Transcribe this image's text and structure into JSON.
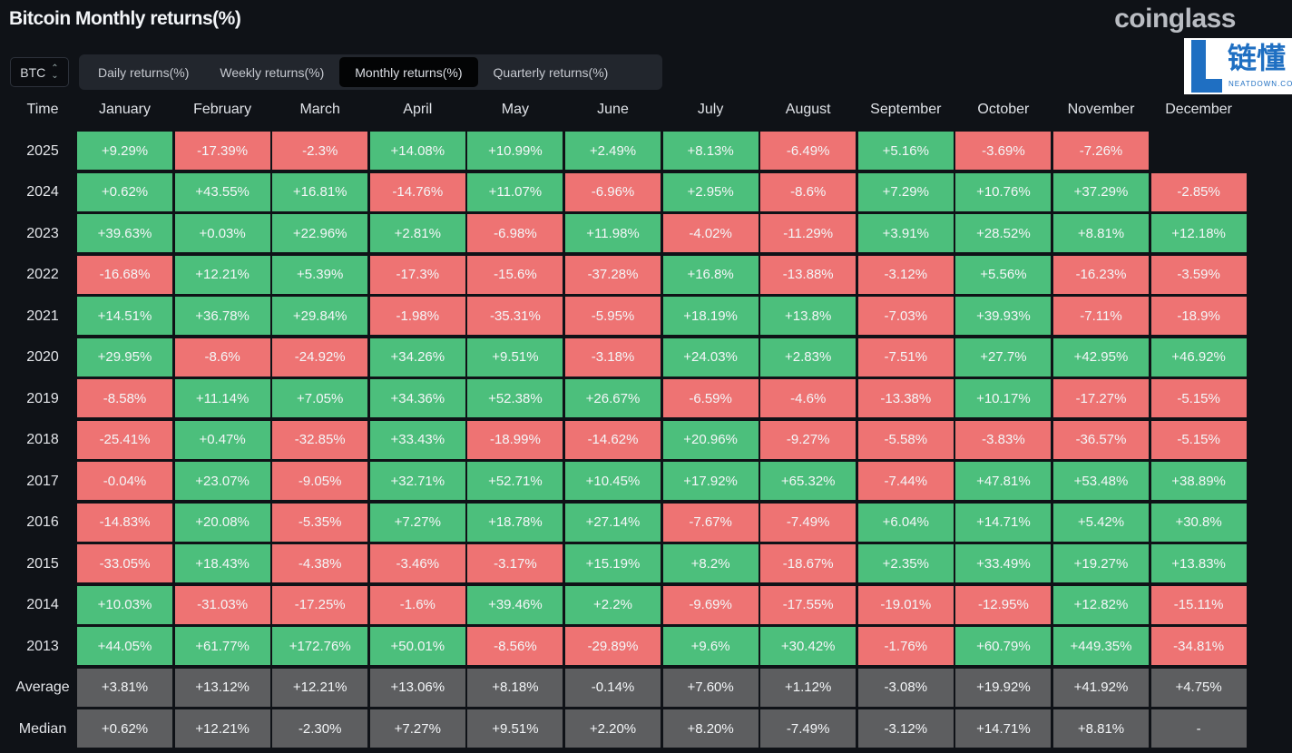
{
  "title": "Bitcoin Monthly returns(%)",
  "brand": "coinglass",
  "symbol": "BTC",
  "tabs": [
    "Daily returns(%)",
    "Weekly returns(%)",
    "Monthly returns(%)",
    "Quarterly returns(%)"
  ],
  "active_tab": 2,
  "columns": [
    "Time",
    "January",
    "February",
    "March",
    "April",
    "May",
    "June",
    "July",
    "August",
    "September",
    "October",
    "November",
    "December"
  ],
  "rows": [
    {
      "label": "2025",
      "values": [
        "+9.29%",
        "-17.39%",
        "-2.3%",
        "+14.08%",
        "+10.99%",
        "+2.49%",
        "+8.13%",
        "-6.49%",
        "+5.16%",
        "-3.69%",
        "-7.26%",
        ""
      ]
    },
    {
      "label": "2024",
      "values": [
        "+0.62%",
        "+43.55%",
        "+16.81%",
        "-14.76%",
        "+11.07%",
        "-6.96%",
        "+2.95%",
        "-8.6%",
        "+7.29%",
        "+10.76%",
        "+37.29%",
        "-2.85%"
      ]
    },
    {
      "label": "2023",
      "values": [
        "+39.63%",
        "+0.03%",
        "+22.96%",
        "+2.81%",
        "-6.98%",
        "+11.98%",
        "-4.02%",
        "-11.29%",
        "+3.91%",
        "+28.52%",
        "+8.81%",
        "+12.18%"
      ]
    },
    {
      "label": "2022",
      "values": [
        "-16.68%",
        "+12.21%",
        "+5.39%",
        "-17.3%",
        "-15.6%",
        "-37.28%",
        "+16.8%",
        "-13.88%",
        "-3.12%",
        "+5.56%",
        "-16.23%",
        "-3.59%"
      ]
    },
    {
      "label": "2021",
      "values": [
        "+14.51%",
        "+36.78%",
        "+29.84%",
        "-1.98%",
        "-35.31%",
        "-5.95%",
        "+18.19%",
        "+13.8%",
        "-7.03%",
        "+39.93%",
        "-7.11%",
        "-18.9%"
      ]
    },
    {
      "label": "2020",
      "values": [
        "+29.95%",
        "-8.6%",
        "-24.92%",
        "+34.26%",
        "+9.51%",
        "-3.18%",
        "+24.03%",
        "+2.83%",
        "-7.51%",
        "+27.7%",
        "+42.95%",
        "+46.92%"
      ]
    },
    {
      "label": "2019",
      "values": [
        "-8.58%",
        "+11.14%",
        "+7.05%",
        "+34.36%",
        "+52.38%",
        "+26.67%",
        "-6.59%",
        "-4.6%",
        "-13.38%",
        "+10.17%",
        "-17.27%",
        "-5.15%"
      ]
    },
    {
      "label": "2018",
      "values": [
        "-25.41%",
        "+0.47%",
        "-32.85%",
        "+33.43%",
        "-18.99%",
        "-14.62%",
        "+20.96%",
        "-9.27%",
        "-5.58%",
        "-3.83%",
        "-36.57%",
        "-5.15%"
      ]
    },
    {
      "label": "2017",
      "values": [
        "-0.04%",
        "+23.07%",
        "-9.05%",
        "+32.71%",
        "+52.71%",
        "+10.45%",
        "+17.92%",
        "+65.32%",
        "-7.44%",
        "+47.81%",
        "+53.48%",
        "+38.89%"
      ]
    },
    {
      "label": "2016",
      "values": [
        "-14.83%",
        "+20.08%",
        "-5.35%",
        "+7.27%",
        "+18.78%",
        "+27.14%",
        "-7.67%",
        "-7.49%",
        "+6.04%",
        "+14.71%",
        "+5.42%",
        "+30.8%"
      ]
    },
    {
      "label": "2015",
      "values": [
        "-33.05%",
        "+18.43%",
        "-4.38%",
        "-3.46%",
        "-3.17%",
        "+15.19%",
        "+8.2%",
        "-18.67%",
        "+2.35%",
        "+33.49%",
        "+19.27%",
        "+13.83%"
      ]
    },
    {
      "label": "2014",
      "values": [
        "+10.03%",
        "-31.03%",
        "-17.25%",
        "-1.6%",
        "+39.46%",
        "+2.2%",
        "-9.69%",
        "-17.55%",
        "-19.01%",
        "-12.95%",
        "+12.82%",
        "-15.11%"
      ]
    },
    {
      "label": "2013",
      "values": [
        "+44.05%",
        "+61.77%",
        "+172.76%",
        "+50.01%",
        "-8.56%",
        "-29.89%",
        "+9.6%",
        "+30.42%",
        "-1.76%",
        "+60.79%",
        "+449.35%",
        "-34.81%"
      ]
    }
  ],
  "summary": [
    {
      "label": "Average",
      "values": [
        "+3.81%",
        "+13.12%",
        "+12.21%",
        "+13.06%",
        "+8.18%",
        "-0.14%",
        "+7.60%",
        "+1.12%",
        "-3.08%",
        "+19.92%",
        "+41.92%",
        "+4.75%"
      ]
    },
    {
      "label": "Median",
      "values": [
        "+0.62%",
        "+12.21%",
        "-2.30%",
        "+7.27%",
        "+9.51%",
        "+2.20%",
        "+8.20%",
        "-7.49%",
        "-3.12%",
        "+14.71%",
        "+8.81%",
        "-"
      ]
    }
  ],
  "watermark": {
    "cn": "链懂",
    "en": "NEATDOWN.COM"
  }
}
